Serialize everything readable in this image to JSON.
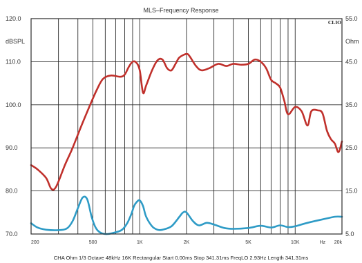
{
  "chart_data": {
    "type": "line",
    "title": "MLS–Frequency Response",
    "brand": "CLIO",
    "ylabel_left": "dBSPL",
    "ylabel_right": "Ohm",
    "x_scale": "log",
    "xlim": [
      200,
      20000
    ],
    "ylim_left": [
      70,
      120
    ],
    "ylim_right": [
      5,
      55
    ],
    "yticks_left": [
      "70.0",
      "80.0",
      "90.0",
      "100.0",
      "110.0",
      "120.0"
    ],
    "yticks_right": [
      "5.0",
      "15.0",
      "25.0",
      "35.0",
      "45.0",
      "55.0"
    ],
    "xtick_labels": [
      {
        "x": 200,
        "label": "200"
      },
      {
        "x": 500,
        "label": "500"
      },
      {
        "x": 1000,
        "label": "1K"
      },
      {
        "x": 2000,
        "label": "2K"
      },
      {
        "x": 5000,
        "label": "5K"
      },
      {
        "x": 10000,
        "label": "10K"
      },
      {
        "x": 15000,
        "label": "Hz"
      },
      {
        "x": 20000,
        "label": "20k"
      }
    ],
    "grid": true,
    "series": [
      {
        "axis": "left",
        "color": "#c0302b",
        "points": [
          [
            200,
            86.0
          ],
          [
            220,
            85.0
          ],
          [
            250,
            83.0
          ],
          [
            270,
            80.5
          ],
          [
            290,
            81.0
          ],
          [
            330,
            86.0
          ],
          [
            370,
            90.0
          ],
          [
            420,
            95.0
          ],
          [
            480,
            100.0
          ],
          [
            530,
            103.5
          ],
          [
            580,
            106.0
          ],
          [
            650,
            106.8
          ],
          [
            750,
            106.5
          ],
          [
            800,
            107.0
          ],
          [
            850,
            108.8
          ],
          [
            900,
            110.0
          ],
          [
            950,
            109.8
          ],
          [
            1000,
            108.0
          ],
          [
            1050,
            102.8
          ],
          [
            1100,
            104.5
          ],
          [
            1200,
            108.0
          ],
          [
            1300,
            110.3
          ],
          [
            1400,
            110.5
          ],
          [
            1500,
            108.5
          ],
          [
            1600,
            108.0
          ],
          [
            1700,
            109.5
          ],
          [
            1800,
            111.0
          ],
          [
            2000,
            111.8
          ],
          [
            2100,
            111.2
          ],
          [
            2300,
            109.0
          ],
          [
            2500,
            108.0
          ],
          [
            2800,
            108.5
          ],
          [
            3200,
            109.5
          ],
          [
            3600,
            109.0
          ],
          [
            4000,
            109.5
          ],
          [
            4500,
            109.3
          ],
          [
            5000,
            109.5
          ],
          [
            5500,
            110.5
          ],
          [
            6000,
            110.0
          ],
          [
            6500,
            108.5
          ],
          [
            7000,
            105.8
          ],
          [
            7500,
            105.0
          ],
          [
            8000,
            104.0
          ],
          [
            8500,
            101.0
          ],
          [
            9000,
            97.8
          ],
          [
            10000,
            99.5
          ],
          [
            11000,
            98.5
          ],
          [
            12000,
            95.2
          ],
          [
            12700,
            98.5
          ],
          [
            14000,
            98.7
          ],
          [
            15000,
            98.0
          ],
          [
            16000,
            94.0
          ],
          [
            17000,
            92.0
          ],
          [
            18000,
            91.0
          ],
          [
            19000,
            89.0
          ],
          [
            20000,
            91.5
          ]
        ]
      },
      {
        "axis": "right",
        "color": "#2e9bc6",
        "points": [
          [
            200,
            7.5
          ],
          [
            220,
            6.5
          ],
          [
            250,
            6.0
          ],
          [
            300,
            5.9
          ],
          [
            340,
            6.3
          ],
          [
            370,
            8.0
          ],
          [
            400,
            11.0
          ],
          [
            430,
            13.5
          ],
          [
            460,
            13.0
          ],
          [
            490,
            9.0
          ],
          [
            520,
            6.5
          ],
          [
            560,
            5.3
          ],
          [
            620,
            5.0
          ],
          [
            700,
            5.4
          ],
          [
            770,
            6.0
          ],
          [
            830,
            7.5
          ],
          [
            880,
            9.5
          ],
          [
            920,
            11.5
          ],
          [
            960,
            12.5
          ],
          [
            1000,
            12.8
          ],
          [
            1050,
            11.5
          ],
          [
            1100,
            9.0
          ],
          [
            1200,
            6.8
          ],
          [
            1300,
            6.0
          ],
          [
            1400,
            6.0
          ],
          [
            1600,
            6.8
          ],
          [
            1800,
            9.0
          ],
          [
            1900,
            10.0
          ],
          [
            2000,
            10.0
          ],
          [
            2200,
            8.0
          ],
          [
            2400,
            7.0
          ],
          [
            2700,
            7.6
          ],
          [
            3000,
            7.2
          ],
          [
            3500,
            6.4
          ],
          [
            4000,
            6.2
          ],
          [
            5000,
            6.4
          ],
          [
            6000,
            6.9
          ],
          [
            7000,
            6.5
          ],
          [
            8000,
            7.0
          ],
          [
            9000,
            6.6
          ],
          [
            10000,
            6.8
          ],
          [
            12000,
            7.6
          ],
          [
            15000,
            8.4
          ],
          [
            18000,
            9.0
          ],
          [
            20000,
            9.0
          ]
        ]
      }
    ],
    "footer": "CHA  Ohm  1/3 Octave  48kHz  16K  Rectangular  Start 0.00ms  Stop 341.31ms  FreqLO 2.93Hz  Length 341.31ms"
  }
}
